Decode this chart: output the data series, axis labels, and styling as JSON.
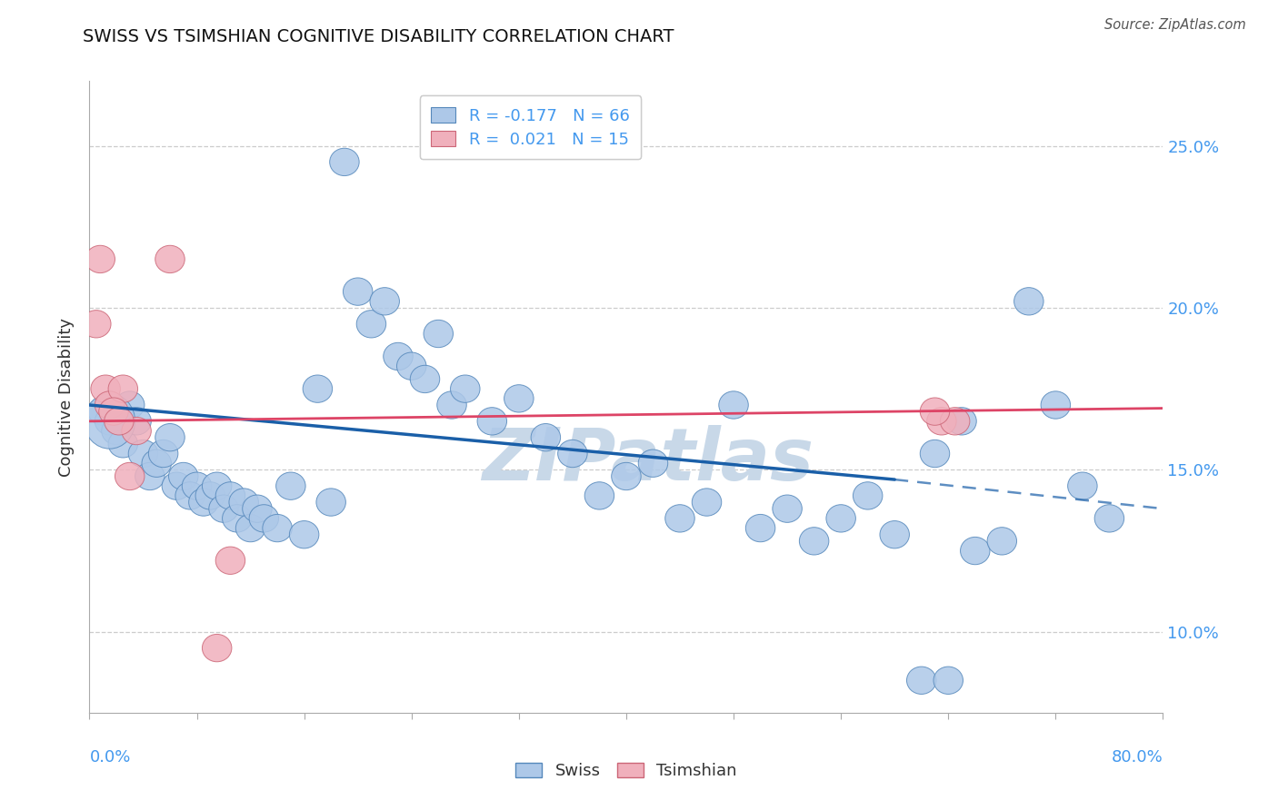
{
  "title": "SWISS VS TSIMSHIAN COGNITIVE DISABILITY CORRELATION CHART",
  "source": "Source: ZipAtlas.com",
  "ylabel": "Cognitive Disability",
  "xlim": [
    0.0,
    80.0
  ],
  "ylim": [
    7.5,
    27.0
  ],
  "yticks": [
    10.0,
    15.0,
    20.0,
    25.0
  ],
  "ytick_labels": [
    "10.0%",
    "15.0%",
    "20.0%",
    "25.0%"
  ],
  "xticks": [
    0.0,
    8.0,
    16.0,
    24.0,
    32.0,
    40.0,
    48.0,
    56.0,
    64.0,
    72.0,
    80.0
  ],
  "swiss_R": -0.177,
  "swiss_N": 66,
  "tsimshian_R": 0.021,
  "tsimshian_N": 15,
  "swiss_color": "#adc8e8",
  "swiss_edge_color": "#5588bb",
  "tsimshian_color": "#f0b0bc",
  "tsimshian_edge_color": "#cc6677",
  "swiss_line_color": "#1a5fa8",
  "tsimshian_line_color": "#dd4466",
  "grid_color": "#cccccc",
  "bg_color": "#ffffff",
  "watermark": "ZIPatlas",
  "watermark_color": "#c8d8e8",
  "axis_label_color": "#4499ee",
  "text_color": "#333333",
  "source_color": "#555555",
  "swiss_x": [
    1.0,
    1.5,
    2.0,
    2.5,
    3.0,
    3.5,
    4.0,
    4.5,
    5.0,
    5.5,
    6.0,
    6.5,
    7.0,
    7.5,
    8.0,
    8.5,
    9.0,
    9.5,
    10.0,
    10.5,
    11.0,
    11.5,
    12.0,
    12.5,
    13.0,
    14.0,
    15.0,
    16.0,
    17.0,
    18.0,
    19.0,
    20.0,
    21.0,
    22.0,
    23.0,
    24.0,
    25.0,
    26.0,
    27.0,
    28.0,
    30.0,
    32.0,
    34.0,
    36.0,
    38.0,
    40.0,
    42.0,
    44.0,
    46.0,
    48.0,
    50.0,
    52.0,
    54.0,
    56.0,
    58.0,
    60.0,
    62.0,
    63.0,
    64.0,
    65.0,
    66.0,
    68.0,
    70.0,
    72.0,
    74.0,
    76.0
  ],
  "swiss_y": [
    16.8,
    16.5,
    16.2,
    15.8,
    17.0,
    16.5,
    15.5,
    14.8,
    15.2,
    15.5,
    16.0,
    14.5,
    14.8,
    14.2,
    14.5,
    14.0,
    14.2,
    14.5,
    13.8,
    14.2,
    13.5,
    14.0,
    13.2,
    13.8,
    13.5,
    13.2,
    14.5,
    13.0,
    17.5,
    14.0,
    24.5,
    20.5,
    19.5,
    20.2,
    18.5,
    18.2,
    17.8,
    19.2,
    17.0,
    17.5,
    16.5,
    17.2,
    16.0,
    15.5,
    14.2,
    14.8,
    15.2,
    13.5,
    14.0,
    17.0,
    13.2,
    13.8,
    12.8,
    13.5,
    14.2,
    13.0,
    8.5,
    15.5,
    8.5,
    16.5,
    12.5,
    12.8,
    20.2,
    17.0,
    14.5,
    13.5
  ],
  "tsimshian_x": [
    0.5,
    0.8,
    1.2,
    1.5,
    2.5,
    3.5,
    6.0,
    10.5,
    63.5,
    64.5
  ],
  "tsimshian_y": [
    19.5,
    21.5,
    17.5,
    17.0,
    17.5,
    16.2,
    21.5,
    12.2,
    16.5,
    16.5
  ],
  "tsimshian_extra_x": [
    1.8,
    2.2,
    3.0,
    9.5,
    63.0
  ],
  "tsimshian_extra_y": [
    16.8,
    16.5,
    14.8,
    9.5,
    16.8
  ],
  "swiss_trend_x1": 0.0,
  "swiss_trend_x2": 60.0,
  "swiss_trend_y1": 17.0,
  "swiss_trend_y2": 14.7,
  "swiss_dash_x1": 60.0,
  "swiss_dash_x2": 80.0,
  "swiss_dash_y1": 14.7,
  "swiss_dash_y2": 13.8,
  "tsimshian_trend_x1": 0.0,
  "tsimshian_trend_x2": 80.0,
  "tsimshian_trend_y1": 16.5,
  "tsimshian_trend_y2": 16.9
}
